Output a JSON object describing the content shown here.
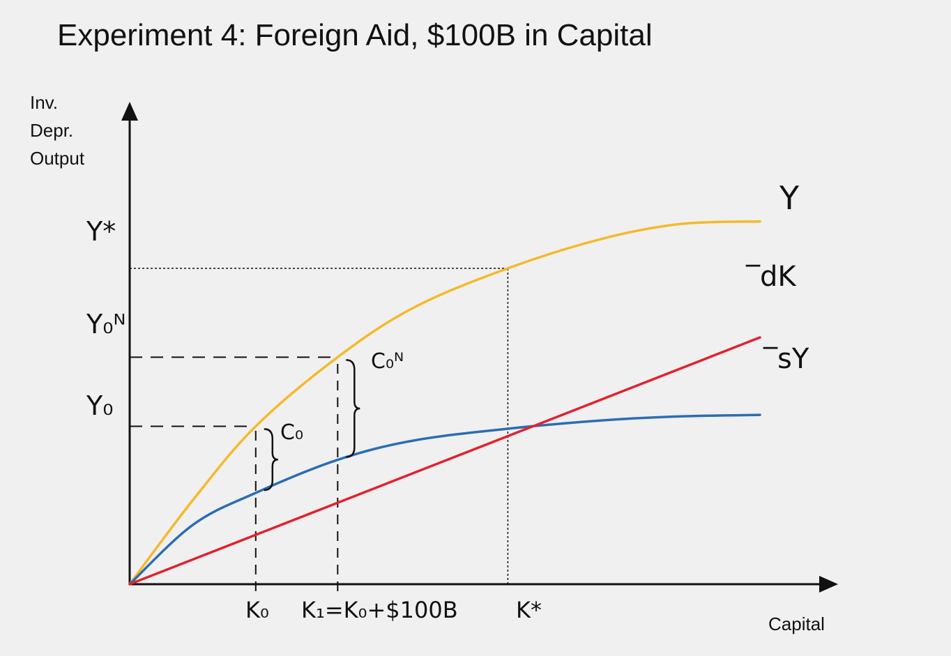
{
  "title": "Experiment 4: Foreign Aid, $100B in Capital",
  "chart_data": {
    "type": "line",
    "ylabel_lines": [
      "Inv.",
      "Depr.",
      "Output"
    ],
    "xlabel": "Capital",
    "xlim": [
      0,
      1.0
    ],
    "ylim": [
      0,
      1.0
    ],
    "grid": false,
    "series": [
      {
        "name": "Y",
        "color": "#f5b92b",
        "role": "output",
        "points": [
          [
            0,
            0
          ],
          [
            0.1,
            0.17
          ],
          [
            0.2,
            0.32
          ],
          [
            0.33,
            0.46
          ],
          [
            0.45,
            0.56
          ],
          [
            0.6,
            0.64
          ],
          [
            0.75,
            0.7
          ],
          [
            0.875,
            0.73
          ],
          [
            1.0,
            0.735
          ]
        ]
      },
      {
        "name": "̅sY",
        "color": "#2b6db3",
        "role": "investment",
        "points": [
          [
            0,
            0
          ],
          [
            0.1,
            0.12
          ],
          [
            0.2,
            0.185
          ],
          [
            0.33,
            0.252
          ],
          [
            0.45,
            0.291
          ],
          [
            0.6,
            0.315
          ],
          [
            0.75,
            0.332
          ],
          [
            0.875,
            0.34
          ],
          [
            1.0,
            0.343
          ]
        ]
      },
      {
        "name": "̅dK",
        "color": "#e2212c",
        "role": "depreciation",
        "points": [
          [
            0,
            0
          ],
          [
            1.0,
            0.5
          ]
        ]
      }
    ],
    "x_markers": [
      {
        "label": "K₀",
        "x": 0.2
      },
      {
        "label": "K₁=K₀+$100B",
        "x": 0.33
      },
      {
        "label": "K*",
        "x": 0.6
      }
    ],
    "y_markers": [
      {
        "label": "Y*",
        "y": 0.64
      },
      {
        "label": "Y₀ᴺ",
        "y": 0.46
      },
      {
        "label": "Y₀",
        "y": 0.32
      }
    ],
    "braces": [
      {
        "label": "C₀",
        "x": 0.2
      },
      {
        "label": "C₀ᴺ",
        "x": 0.33
      }
    ]
  }
}
